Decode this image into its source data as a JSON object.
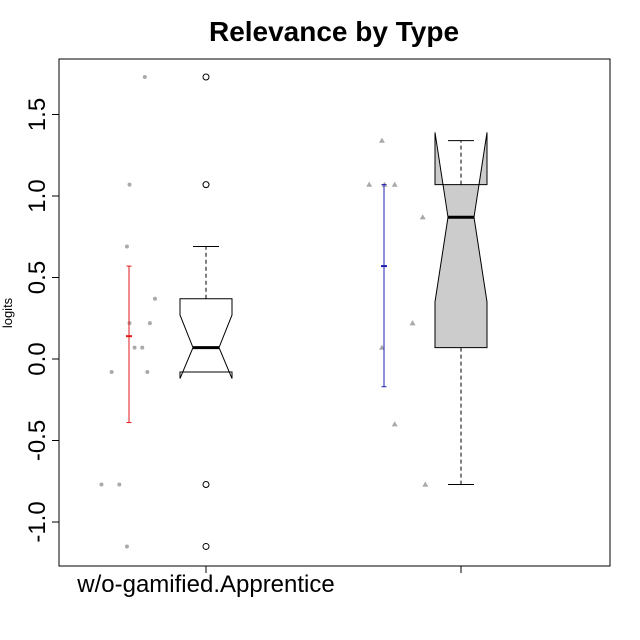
{
  "chart_data": {
    "type": "box",
    "title": "Relevance by Type",
    "xlabel": "",
    "ylabel": "logits",
    "ylim": [
      -1.25,
      1.8
    ],
    "yticks": [
      -1.0,
      -0.5,
      0.0,
      0.5,
      1.0,
      1.5
    ],
    "ytick_labels": [
      "-1.0",
      "-0.5",
      "0.0",
      "0.5",
      "1.0",
      "1.5"
    ],
    "grid": false,
    "legend": "none",
    "categories": [
      "w/o-gamified.Apprentice",
      ""
    ],
    "groups": [
      {
        "category": "w/o-gamified.Apprentice",
        "points": [
          {
            "x": 0.76,
            "y": 1.73
          },
          {
            "x": 0.7,
            "y": 1.07
          },
          {
            "x": 0.69,
            "y": 0.69
          },
          {
            "x": 0.8,
            "y": 0.37
          },
          {
            "x": 0.7,
            "y": 0.22
          },
          {
            "x": 0.78,
            "y": 0.22
          },
          {
            "x": 0.72,
            "y": 0.07
          },
          {
            "x": 0.75,
            "y": 0.07
          },
          {
            "x": 0.63,
            "y": -0.08
          },
          {
            "x": 0.77,
            "y": -0.08
          },
          {
            "x": 0.59,
            "y": -0.77
          },
          {
            "x": 0.66,
            "y": -0.77
          },
          {
            "x": 0.69,
            "y": -1.15
          }
        ],
        "mean": 0.14,
        "ci_low": -0.39,
        "ci_high": 0.57,
        "box": {
          "q1": -0.08,
          "median": 0.07,
          "q3": 0.37,
          "notch_low": -0.12,
          "notch_high": 0.27,
          "whisker_low": -0.08,
          "whisker_high": 0.69,
          "outliers": [
            1.73,
            1.07,
            -0.77,
            -1.15
          ]
        },
        "color": "#e31a1c",
        "point_shape": "circle"
      },
      {
        "category": "",
        "points": [
          {
            "x": 1.69,
            "y": 1.34
          },
          {
            "x": 1.64,
            "y": 1.07
          },
          {
            "x": 1.7,
            "y": 1.07
          },
          {
            "x": 1.74,
            "y": 1.07
          },
          {
            "x": 1.85,
            "y": 0.87
          },
          {
            "x": 1.81,
            "y": 0.22
          },
          {
            "x": 1.69,
            "y": 0.07
          },
          {
            "x": 1.74,
            "y": -0.4
          },
          {
            "x": 1.86,
            "y": -0.77
          }
        ],
        "mean": 0.57,
        "ci_low": -0.17,
        "ci_high": 1.07,
        "box": {
          "q1": 0.07,
          "median": 0.87,
          "q3": 1.07,
          "notch_low": 0.35,
          "notch_high": 1.39,
          "whisker_low": -0.77,
          "whisker_high": 1.34,
          "outliers": []
        },
        "color": "#1f1fb4",
        "point_shape": "triangle"
      }
    ],
    "colors": {
      "point": "#aaaaaa",
      "box_fill_group2": "#cccccc",
      "axis": "#000000"
    }
  }
}
